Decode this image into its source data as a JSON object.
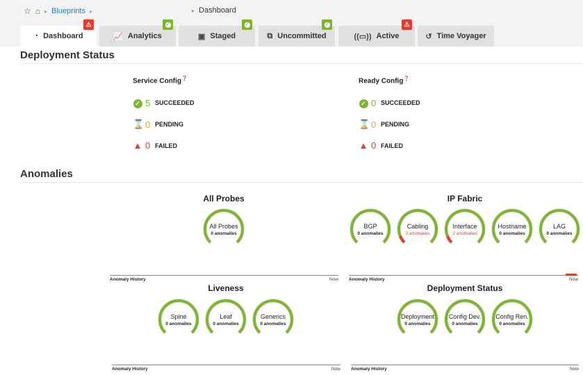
{
  "breadcrumb": {
    "blueprints": "Blueprints",
    "current": "Dashboard"
  },
  "tabs": [
    {
      "label": "Dashboard",
      "icon": "gauge-icon",
      "badge": "error",
      "glyph": "◔"
    },
    {
      "label": "Analytics",
      "icon": "line-chart-icon",
      "badge": "ok",
      "glyph": "📈"
    },
    {
      "label": "Staged",
      "icon": "document-lock-icon",
      "badge": "ok",
      "glyph": "▣"
    },
    {
      "label": "Uncommitted",
      "icon": "uncommitted-icon",
      "badge": "ok",
      "glyph": "⧉"
    },
    {
      "label": "Active",
      "icon": "broadcast-icon",
      "badge": "error",
      "glyph": "((▭))"
    },
    {
      "label": "Time Voyager",
      "icon": "history-icon",
      "badge": null,
      "glyph": "↺"
    }
  ],
  "deployment_status": {
    "title": "Deployment Status",
    "service": {
      "title": "Service Config",
      "succeeded": "5",
      "pending": "0",
      "failed": "0"
    },
    "ready": {
      "title": "Ready Config",
      "succeeded": "0",
      "pending": "0",
      "failed": "0"
    },
    "labels": {
      "succeeded": "SUCCEEDED",
      "pending": "PENDING",
      "failed": "FAILED"
    }
  },
  "anomalies": {
    "title": "Anomalies",
    "history_label": "Anomaly History",
    "now_label": "Now",
    "groups": [
      {
        "title": "All Probes",
        "gauges": [
          {
            "name": "All Probes",
            "text": "0 anomalies",
            "count": 0
          }
        ]
      },
      {
        "title": "IP Fabric",
        "gauges": [
          {
            "name": "BGP",
            "text": "0 anomalies",
            "count": 0
          },
          {
            "name": "Cabling",
            "text": "2 anomalies",
            "count": 2
          },
          {
            "name": "Interface",
            "text": "2 anomalies",
            "count": 2
          },
          {
            "name": "Hostname",
            "text": "0 anomalies",
            "count": 0
          },
          {
            "name": "LAG",
            "text": "0 anomalies",
            "count": 0
          }
        ]
      },
      {
        "title": "Liveness",
        "gauges": [
          {
            "name": "Spine",
            "text": "0 anomalies",
            "count": 0
          },
          {
            "name": "Leaf",
            "text": "0 anomalies",
            "count": 0
          },
          {
            "name": "Generics",
            "text": "0 anomalies",
            "count": 0
          }
        ]
      },
      {
        "title": "Deployment Status",
        "gauges": [
          {
            "name": "Deployment",
            "text": "0 anomalies",
            "count": 0
          },
          {
            "name": "Config Dev.",
            "text": "0 anomalies",
            "count": 0
          },
          {
            "name": "Config Ren.",
            "text": "0 anomalies",
            "count": 0
          }
        ]
      }
    ]
  },
  "colors": {
    "ok": "#7fb431",
    "error": "#e53b2f",
    "link": "#1a7fc1",
    "pending": "#f5a623"
  }
}
